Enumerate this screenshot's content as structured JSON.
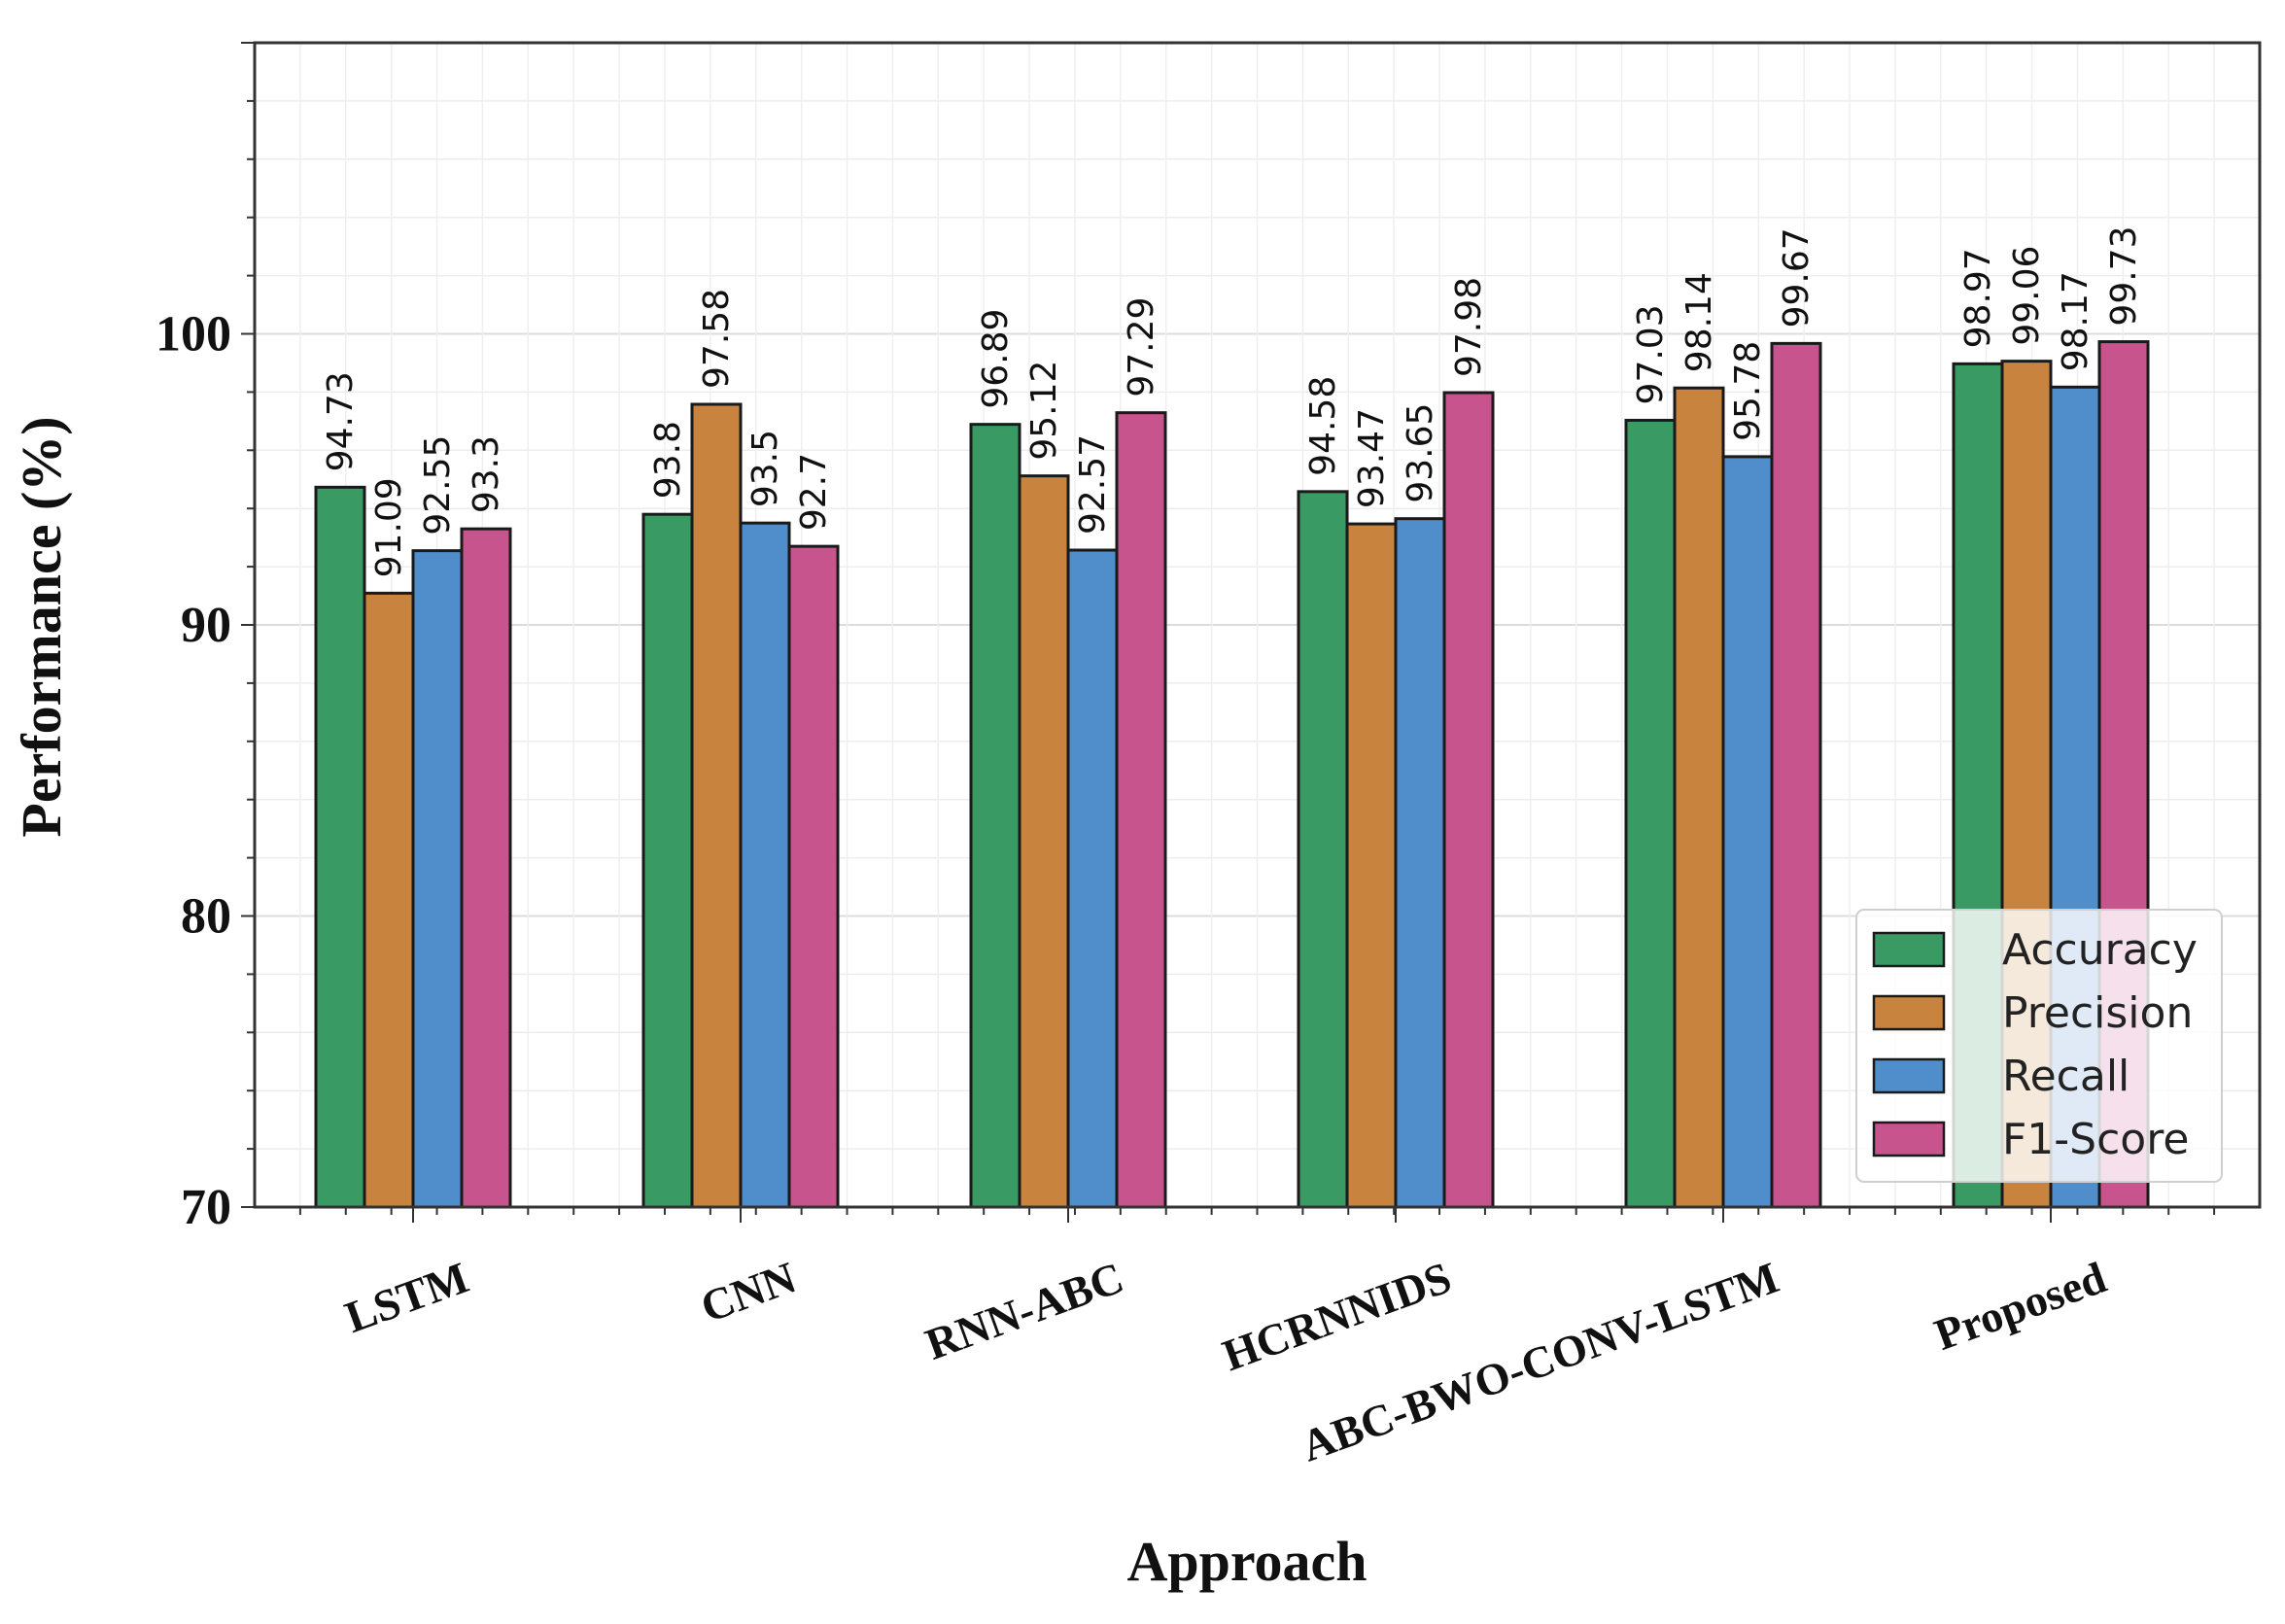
{
  "chart_data": {
    "type": "bar",
    "title": "",
    "xlabel": "Approach",
    "ylabel": "Performance (%)",
    "ylim": [
      70,
      110
    ],
    "yticks": [
      70,
      80,
      90,
      100
    ],
    "grid": true,
    "legend_position": "bottom-right",
    "categories": [
      "LSTM",
      "CNN",
      "RNN-ABC",
      "HCRNNIDS",
      "ABC-BWO-CONV-LSTM",
      "Proposed"
    ],
    "series": [
      {
        "name": "Accuracy",
        "color": "#3a9a64",
        "values": [
          94.73,
          93.8,
          96.89,
          94.58,
          97.03,
          98.97
        ]
      },
      {
        "name": "Precision",
        "color": "#c8843e",
        "values": [
          91.09,
          97.58,
          95.12,
          93.47,
          98.14,
          99.06
        ]
      },
      {
        "name": "Recall",
        "color": "#4f8dcb",
        "values": [
          92.55,
          93.5,
          92.57,
          93.65,
          95.78,
          98.17
        ]
      },
      {
        "name": "F1-Score",
        "color": "#c8548e",
        "values": [
          93.3,
          92.7,
          97.29,
          97.98,
          99.67,
          99.73
        ]
      }
    ]
  }
}
